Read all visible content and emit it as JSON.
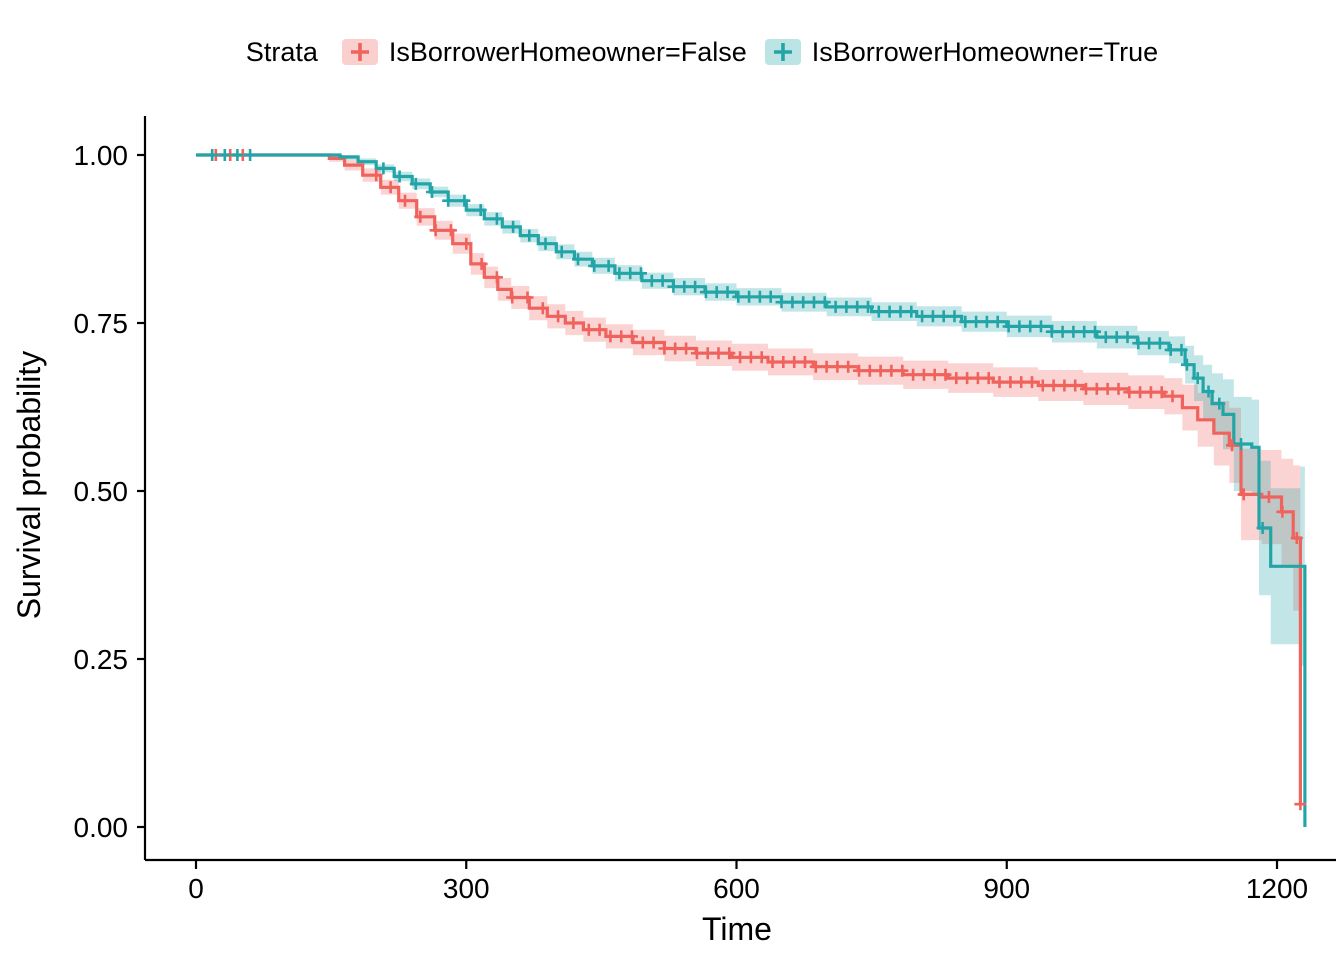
{
  "figure": {
    "background": "#FFFFFF"
  },
  "chart_data": {
    "type": "line",
    "subtype": "kaplan-meier-step-with-confidence-bands",
    "title": "",
    "xlabel": "Time",
    "ylabel": "Survival probability",
    "xlim": [
      0,
      1260
    ],
    "ylim": [
      0,
      1
    ],
    "grid": false,
    "legend": {
      "title": "Strata",
      "position": "top"
    },
    "x_ticks": [
      {
        "value": 0,
        "label": "0"
      },
      {
        "value": 300,
        "label": "300"
      },
      {
        "value": 600,
        "label": "600"
      },
      {
        "value": 900,
        "label": "900"
      },
      {
        "value": 1200,
        "label": "1200"
      }
    ],
    "y_ticks": [
      {
        "value": 0.0,
        "label": "0.00"
      },
      {
        "value": 0.25,
        "label": "0.25"
      },
      {
        "value": 0.5,
        "label": "0.50"
      },
      {
        "value": 0.75,
        "label": "0.75"
      },
      {
        "value": 1.0,
        "label": "1.00"
      }
    ],
    "series": [
      {
        "name": "IsBorrowerHomeowner=False",
        "color": "#F0625C",
        "band_opacity": 0.28,
        "points": [
          [
            0,
            1,
            1,
            1
          ],
          [
            100,
            1,
            1,
            1
          ],
          [
            148,
            0.995,
            0.99,
            1
          ],
          [
            165,
            0.985,
            0.977,
            0.993
          ],
          [
            185,
            0.97,
            0.96,
            0.98
          ],
          [
            205,
            0.952,
            0.941,
            0.963
          ],
          [
            225,
            0.932,
            0.92,
            0.944
          ],
          [
            245,
            0.908,
            0.895,
            0.921
          ],
          [
            265,
            0.888,
            0.874,
            0.902
          ],
          [
            285,
            0.868,
            0.853,
            0.883
          ],
          [
            305,
            0.838,
            0.822,
            0.854
          ],
          [
            320,
            0.818,
            0.802,
            0.834
          ],
          [
            335,
            0.8,
            0.783,
            0.817
          ],
          [
            350,
            0.788,
            0.771,
            0.805
          ],
          [
            370,
            0.772,
            0.754,
            0.79
          ],
          [
            390,
            0.76,
            0.742,
            0.778
          ],
          [
            410,
            0.75,
            0.732,
            0.768
          ],
          [
            430,
            0.74,
            0.722,
            0.758
          ],
          [
            455,
            0.73,
            0.712,
            0.748
          ],
          [
            485,
            0.721,
            0.702,
            0.74
          ],
          [
            520,
            0.712,
            0.693,
            0.731
          ],
          [
            555,
            0.705,
            0.686,
            0.724
          ],
          [
            595,
            0.699,
            0.679,
            0.719
          ],
          [
            635,
            0.692,
            0.672,
            0.712
          ],
          [
            685,
            0.685,
            0.665,
            0.705
          ],
          [
            735,
            0.679,
            0.658,
            0.7
          ],
          [
            785,
            0.673,
            0.652,
            0.694
          ],
          [
            835,
            0.668,
            0.646,
            0.69
          ],
          [
            885,
            0.662,
            0.64,
            0.684
          ],
          [
            935,
            0.657,
            0.634,
            0.68
          ],
          [
            985,
            0.652,
            0.628,
            0.676
          ],
          [
            1035,
            0.647,
            0.622,
            0.672
          ],
          [
            1075,
            0.641,
            0.614,
            0.668
          ],
          [
            1095,
            0.624,
            0.59,
            0.658
          ],
          [
            1112,
            0.606,
            0.566,
            0.646
          ],
          [
            1130,
            0.586,
            0.538,
            0.634
          ],
          [
            1147,
            0.568,
            0.512,
            0.624
          ],
          [
            1160,
            0.495,
            0.427,
            0.563
          ],
          [
            1183,
            0.491,
            0.421,
            0.561
          ],
          [
            1205,
            0.469,
            0.39,
            0.548
          ],
          [
            1218,
            0.43,
            0.322,
            0.538
          ],
          [
            1226,
            0.034,
            0,
            0.3
          ]
        ],
        "censor_times": [
          22,
          38,
          52,
          200,
          216,
          232,
          249,
          266,
          283,
          300,
          317,
          334,
          351,
          368,
          385,
          402,
          419,
          436,
          448,
          460,
          472,
          484,
          496,
          508,
          520,
          532,
          544,
          556,
          568,
          580,
          592,
          604,
          616,
          628,
          640,
          652,
          664,
          676,
          688,
          700,
          712,
          724,
          736,
          748,
          760,
          772,
          784,
          796,
          808,
          820,
          832,
          844,
          856,
          868,
          880,
          892,
          904,
          916,
          928,
          940,
          952,
          964,
          976,
          988,
          1000,
          1012,
          1024,
          1036,
          1048,
          1060,
          1072,
          1084,
          1150,
          1163,
          1191,
          1206,
          1222,
          1226
        ]
      },
      {
        "name": "IsBorrowerHomeowner=True",
        "color": "#23A5A8",
        "band_opacity": 0.28,
        "points": [
          [
            0,
            1,
            1,
            1
          ],
          [
            130,
            1,
            1,
            1
          ],
          [
            160,
            0.997,
            0.993,
            1
          ],
          [
            180,
            0.99,
            0.985,
            0.995
          ],
          [
            200,
            0.98,
            0.974,
            0.986
          ],
          [
            220,
            0.968,
            0.961,
            0.975
          ],
          [
            240,
            0.957,
            0.949,
            0.965
          ],
          [
            260,
            0.945,
            0.937,
            0.953
          ],
          [
            280,
            0.932,
            0.923,
            0.941
          ],
          [
            300,
            0.918,
            0.909,
            0.927
          ],
          [
            320,
            0.905,
            0.895,
            0.915
          ],
          [
            340,
            0.893,
            0.883,
            0.903
          ],
          [
            360,
            0.88,
            0.87,
            0.89
          ],
          [
            380,
            0.868,
            0.857,
            0.879
          ],
          [
            400,
            0.856,
            0.845,
            0.867
          ],
          [
            420,
            0.845,
            0.834,
            0.856
          ],
          [
            440,
            0.835,
            0.823,
            0.847
          ],
          [
            465,
            0.824,
            0.812,
            0.836
          ],
          [
            495,
            0.813,
            0.801,
            0.825
          ],
          [
            530,
            0.804,
            0.791,
            0.817
          ],
          [
            565,
            0.796,
            0.783,
            0.809
          ],
          [
            600,
            0.789,
            0.776,
            0.802
          ],
          [
            650,
            0.781,
            0.767,
            0.795
          ],
          [
            700,
            0.774,
            0.76,
            0.788
          ],
          [
            750,
            0.767,
            0.753,
            0.781
          ],
          [
            800,
            0.76,
            0.745,
            0.775
          ],
          [
            850,
            0.752,
            0.737,
            0.767
          ],
          [
            900,
            0.745,
            0.729,
            0.761
          ],
          [
            950,
            0.737,
            0.721,
            0.753
          ],
          [
            1000,
            0.729,
            0.712,
            0.746
          ],
          [
            1045,
            0.72,
            0.702,
            0.738
          ],
          [
            1080,
            0.71,
            0.69,
            0.73
          ],
          [
            1098,
            0.688,
            0.66,
            0.716
          ],
          [
            1108,
            0.668,
            0.634,
            0.702
          ],
          [
            1118,
            0.648,
            0.608,
            0.688
          ],
          [
            1128,
            0.63,
            0.585,
            0.675
          ],
          [
            1140,
            0.614,
            0.562,
            0.666
          ],
          [
            1152,
            0.57,
            0.5,
            0.64
          ],
          [
            1172,
            0.565,
            0.494,
            0.636
          ],
          [
            1180,
            0.445,
            0.345,
            0.545
          ],
          [
            1193,
            0.388,
            0.272,
            0.504
          ],
          [
            1226,
            0.388,
            0.24,
            0.536
          ],
          [
            1231,
            0,
            0,
            0.32
          ]
        ],
        "censor_times": [
          18,
          32,
          46,
          60,
          208,
          226,
          244,
          262,
          280,
          298,
          316,
          334,
          352,
          370,
          388,
          406,
          424,
          442,
          458,
          470,
          482,
          494,
          506,
          518,
          530,
          542,
          554,
          566,
          578,
          590,
          602,
          614,
          626,
          638,
          650,
          662,
          674,
          686,
          698,
          710,
          722,
          734,
          746,
          758,
          770,
          782,
          794,
          806,
          818,
          830,
          842,
          854,
          866,
          878,
          890,
          902,
          914,
          926,
          938,
          950,
          962,
          974,
          986,
          998,
          1010,
          1022,
          1034,
          1046,
          1058,
          1070,
          1082,
          1094,
          1100,
          1112,
          1124,
          1136,
          1160,
          1184
        ]
      }
    ]
  }
}
